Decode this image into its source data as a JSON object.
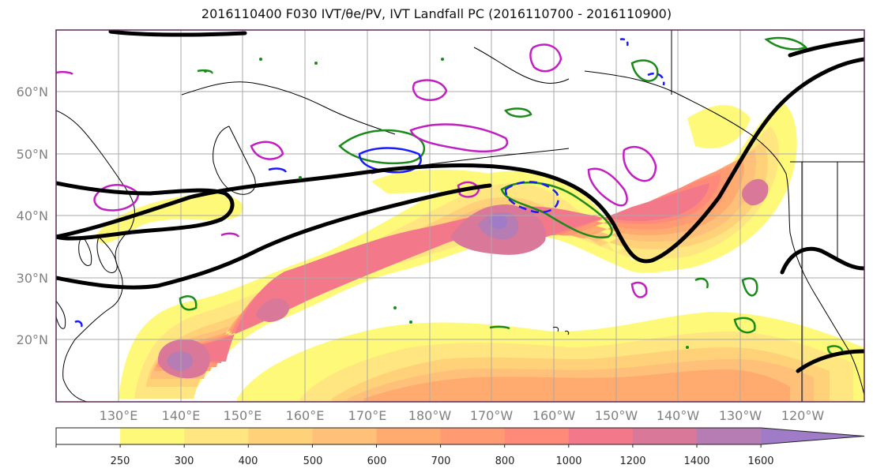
{
  "title": "2016110400 F030 IVT/θe/PV, IVT Landfall PC (2016110700 - 2016110900)",
  "colors": {
    "frame": "#5b2a5b",
    "grid": "#aaaaaa",
    "coast": "#000000",
    "thetae": "#1a8a1a",
    "pv_pos": "#c21fc2",
    "pv_neg": "#1a1aff",
    "landfall_pc": "#000000"
  },
  "map": {
    "lat_labels": [
      "60°N",
      "50°N",
      "40°N",
      "30°N",
      "20°N"
    ],
    "lon_labels": [
      "130°E",
      "140°E",
      "150°E",
      "160°E",
      "170°E",
      "180°W",
      "170°W",
      "160°W",
      "150°W",
      "140°W",
      "130°W",
      "120°W"
    ]
  },
  "colorbar": {
    "ticks": [
      "250",
      "300",
      "400",
      "500",
      "600",
      "700",
      "800",
      "1000",
      "1200",
      "1400",
      "1600"
    ],
    "colors": [
      "#ffffff",
      "#fff97a",
      "#ffe680",
      "#ffd27a",
      "#ffc07a",
      "#ffab70",
      "#ff9a72",
      "#ff8a7a",
      "#f2788a",
      "#d97898",
      "#b67cb4",
      "#a07cc8"
    ]
  },
  "chart_data": {
    "type": "heatmap",
    "title": "2016110400 F030 IVT/θe/PV, IVT Landfall PC (2016110700 - 2016110900)",
    "colorbar_levels": [
      250,
      300,
      400,
      500,
      600,
      700,
      800,
      1000,
      1200,
      1400,
      1600
    ],
    "lat_range": [
      10,
      70
    ],
    "lon_range": [
      120,
      250
    ]
  }
}
